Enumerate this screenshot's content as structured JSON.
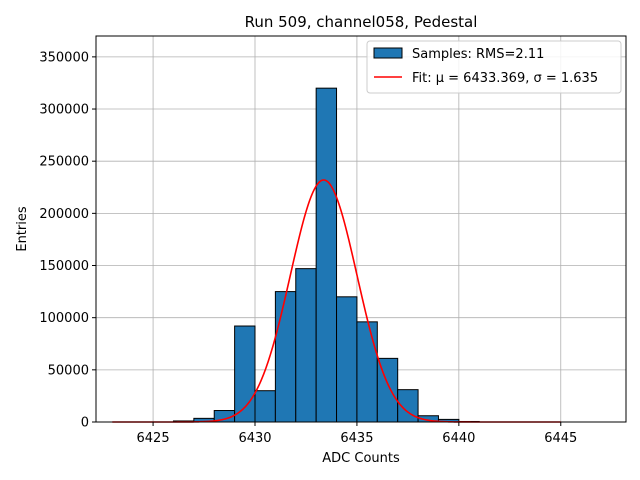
{
  "chart_data": {
    "type": "bar",
    "title": "Run 509, channel058, Pedestal",
    "xlabel": "ADC Counts",
    "ylabel": "Entries",
    "xlim": [
      6422.2,
      6448.2
    ],
    "ylim": [
      0,
      370000
    ],
    "xticks": [
      6425,
      6430,
      6435,
      6440,
      6445
    ],
    "yticks": [
      0,
      50000,
      100000,
      150000,
      200000,
      250000,
      300000,
      350000
    ],
    "grid": true,
    "legend_position": "top-right",
    "bin_width": 1,
    "histogram": {
      "name": "Samples: RMS=2.11",
      "color": "#1f77b4",
      "edgecolor": "#000000",
      "bin_left_edges": [
        6426,
        6427,
        6428,
        6429,
        6430,
        6431,
        6432,
        6433,
        6434,
        6435,
        6436,
        6437,
        6438,
        6439,
        6440
      ],
      "values": [
        1000,
        3500,
        11000,
        92000,
        30000,
        125000,
        147000,
        320000,
        120000,
        96000,
        61000,
        31000,
        6000,
        2500,
        500
      ]
    },
    "fit": {
      "name": "Fit: μ = 6433.369, σ = 1.635",
      "color": "#ff0000",
      "mu": 6433.369,
      "sigma": 1.635,
      "amplitude": 232000,
      "x_range": [
        6423,
        6445
      ]
    }
  }
}
